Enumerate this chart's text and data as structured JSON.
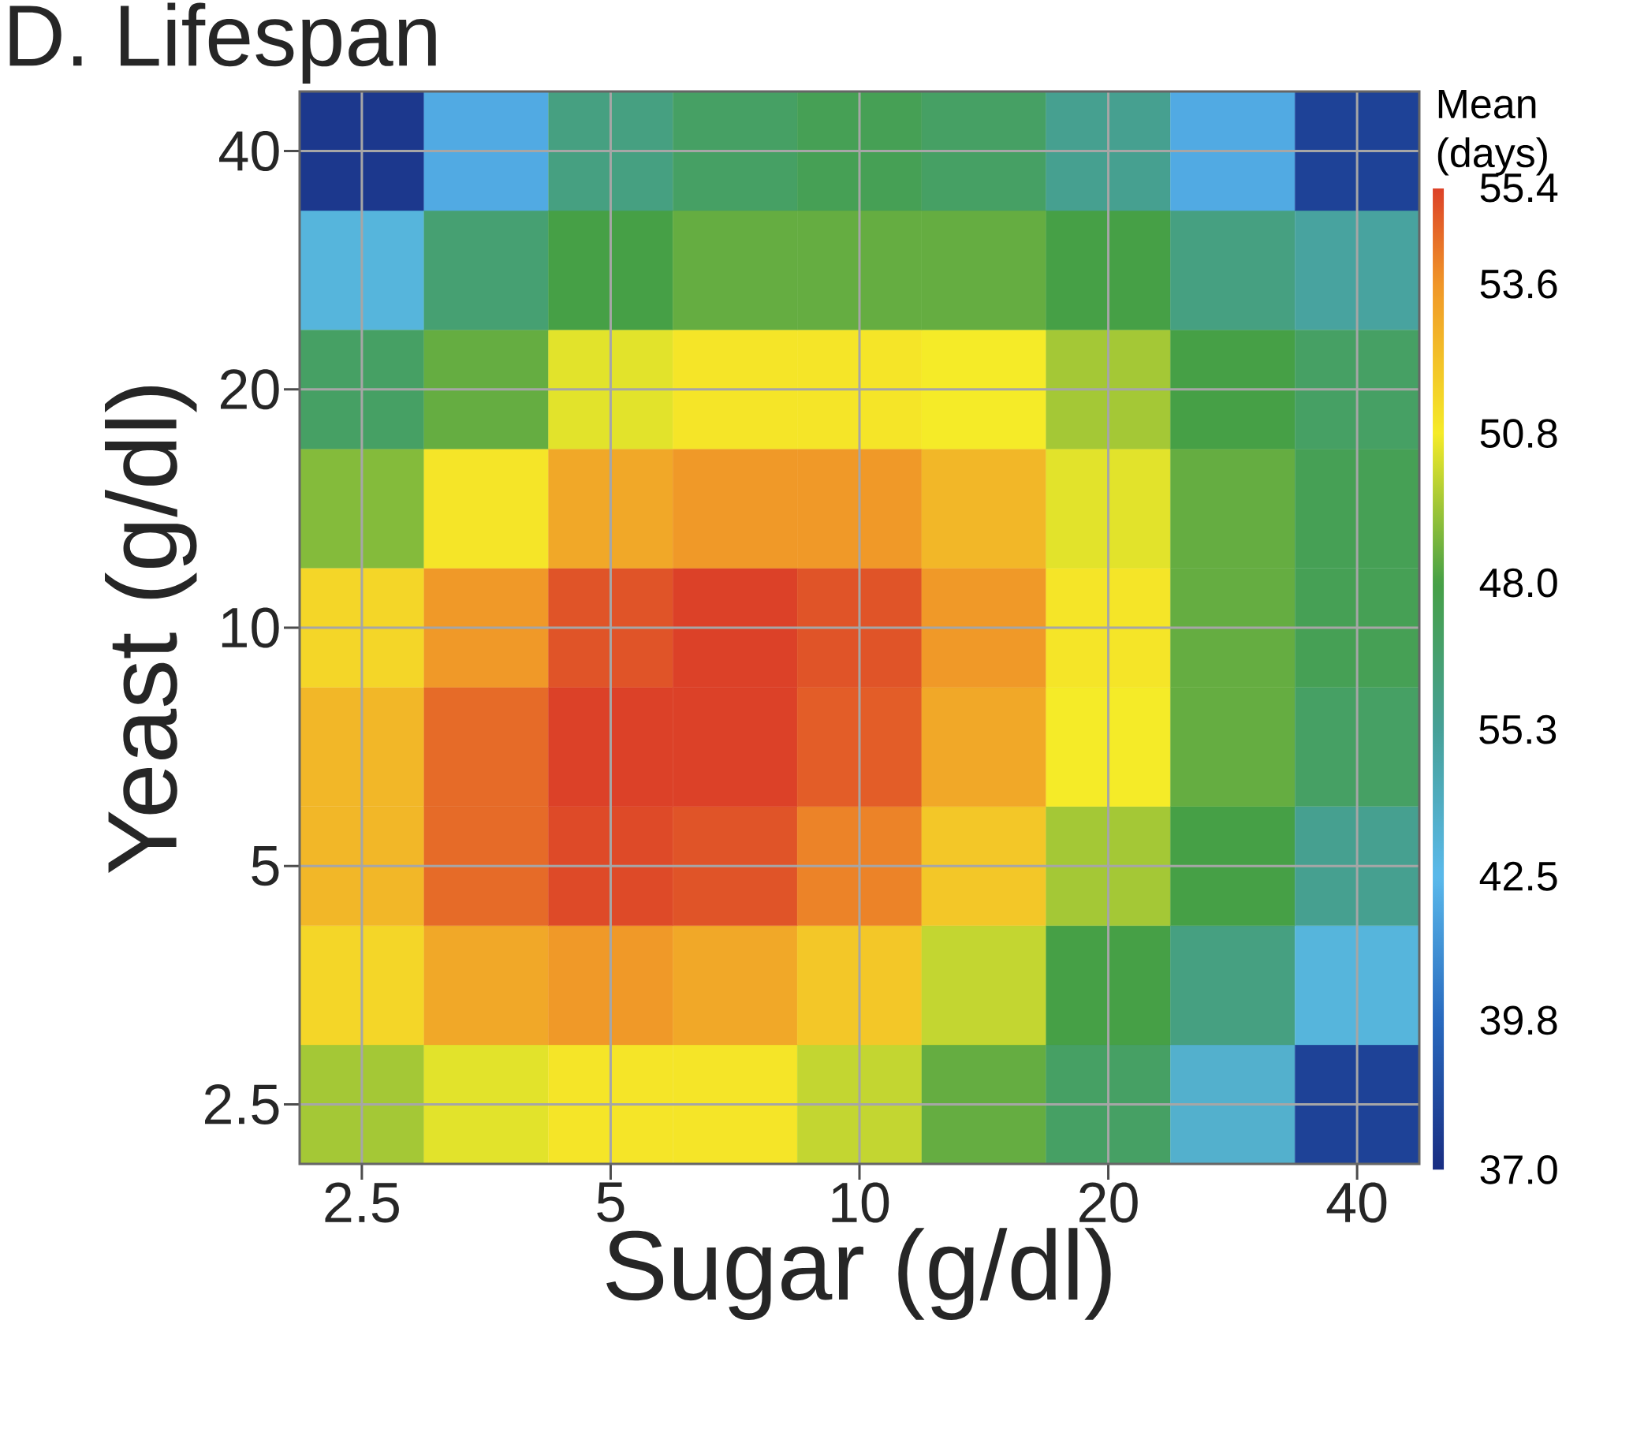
{
  "chart_data": {
    "type": "heatmap",
    "title": "D. Lifespan",
    "xlabel": "Sugar (g/dl)",
    "ylabel": "Yeast (g/dl)",
    "clabel": "Mean (days)",
    "categories": [
      "2.5",
      null,
      "5",
      null,
      "10",
      null,
      "20",
      null,
      "40"
    ],
    "y_categories": [
      "40",
      null,
      "20",
      null,
      "10",
      null,
      "5",
      null,
      "2.5"
    ],
    "cells": [
      [
        37.5,
        42,
        46,
        47,
        47.5,
        47,
        45.5,
        42,
        38
      ],
      [
        43,
        46.5,
        48,
        48.5,
        48.5,
        48.5,
        48,
        46,
        45
      ],
      [
        47,
        48.5,
        50.5,
        51,
        51,
        50.8,
        49.5,
        48,
        47
      ],
      [
        49,
        51,
        53,
        53.5,
        53.5,
        52.5,
        50.5,
        48.5,
        47.5
      ],
      [
        51.5,
        53.5,
        55,
        55.4,
        55,
        53.5,
        51,
        48.5,
        47.5
      ],
      [
        52.5,
        54.5,
        55.4,
        55.4,
        54.8,
        53,
        50.8,
        48.5,
        47
      ],
      [
        52.5,
        54.5,
        55.2,
        55,
        54,
        52,
        49.5,
        48,
        45.5
      ],
      [
        51.5,
        53,
        53.5,
        53,
        52,
        50,
        48,
        46,
        43
      ],
      [
        49.5,
        50.5,
        51,
        51,
        50,
        48.5,
        47,
        43.5,
        38
      ]
    ],
    "clim": [
      37,
      55.4
    ],
    "cticks": [
      55.4,
      53.6,
      50.8,
      {
        "value": 48.0,
        "label": "48.0"
      },
      42.5,
      39.8,
      {
        "value": 37.0,
        "label": "37.0"
      }
    ],
    "annotations": [
      "55.3"
    ],
    "grid": true
  }
}
